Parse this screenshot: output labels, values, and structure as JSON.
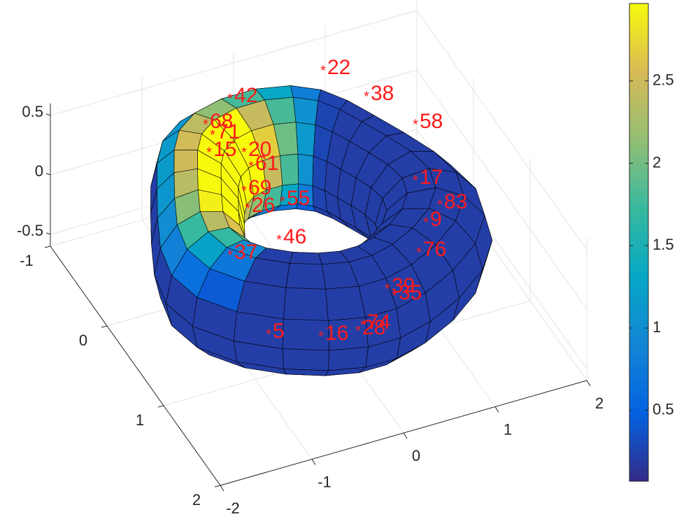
{
  "chart_data": {
    "type": "surface3d",
    "xlim": [
      -2,
      2
    ],
    "xticks": [
      -2,
      -1,
      0,
      1,
      2
    ],
    "ylim": [
      -1,
      2
    ],
    "yticks": [
      -1,
      0,
      1,
      2
    ],
    "zlim": [
      -0.6,
      0.6
    ],
    "zticks": [
      -0.5,
      0,
      0.5
    ],
    "clim": [
      0.07,
      2.97
    ],
    "cticks": [
      0.5,
      1,
      1.5,
      2,
      2.5
    ],
    "colormap": [
      "#352a87",
      "#0363e1",
      "#1485d4",
      "#06a7c6",
      "#38b99e",
      "#92bf73",
      "#d9ba56",
      "#f8fa0d"
    ],
    "grid": true,
    "marker_color": "#ff1a1a",
    "point_labels": [
      22,
      68,
      42,
      38,
      58,
      17,
      83,
      9,
      76,
      35,
      39,
      74,
      28,
      16,
      5,
      46,
      37,
      61,
      20,
      69,
      71,
      15,
      55,
      26
    ]
  }
}
